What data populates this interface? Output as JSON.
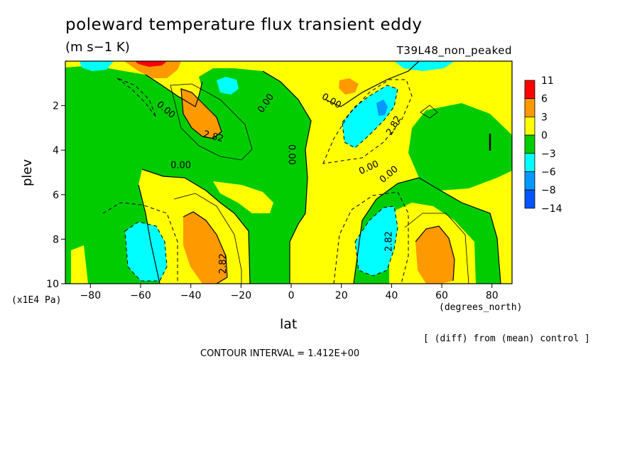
{
  "chart_data": {
    "type": "heatmap",
    "title": "poleward temperature flux transient eddy",
    "units": "(m s−1 K)",
    "run_name": "T39L48_non_peaked",
    "xlabel": "lat",
    "xunit": "(degrees_north)",
    "ylabel": "plev",
    "yunit": "(x1E4 Pa)",
    "footnote": "[ (diff) from (mean) control ]",
    "contour_interval_text": "CONTOUR INTERVAL = 1.412E+00",
    "xlim": [
      -90,
      88
    ],
    "ylim": [
      10,
      0
    ],
    "x_ticks": [
      -80,
      -60,
      -40,
      -20,
      0,
      20,
      40,
      60,
      80
    ],
    "y_ticks": [
      2,
      4,
      6,
      8,
      10
    ],
    "contour_labels": [
      {
        "text": "0.00",
        "x": -50,
        "y": 2.2,
        "angle": 40
      },
      {
        "text": "2.82",
        "x": -31,
        "y": 3.4,
        "angle": 15
      },
      {
        "text": "0.00",
        "x": -10,
        "y": 1.9,
        "angle": -55
      },
      {
        "text": "0.00",
        "x": 16,
        "y": 1.8,
        "angle": 30
      },
      {
        "text": "2.82",
        "x": 41,
        "y": 2.9,
        "angle": -60
      },
      {
        "text": "0.00",
        "x": -44,
        "y": 4.7,
        "angle": 0
      },
      {
        "text": "0.00",
        "x": 0,
        "y": 4.2,
        "angle": 90
      },
      {
        "text": "0.00",
        "x": 31,
        "y": 4.8,
        "angle": -25
      },
      {
        "text": "0.00",
        "x": 39,
        "y": 5.1,
        "angle": -40
      },
      {
        "text": "2.82",
        "x": 39,
        "y": 8.1,
        "angle": -90
      },
      {
        "text": "2.82",
        "x": -27,
        "y": 9.1,
        "angle": -90
      }
    ],
    "colorbar": {
      "labels": [
        "11",
        "6",
        "3",
        "0",
        "−3",
        "−6",
        "−8",
        "−14"
      ],
      "colors": [
        "#ff0000",
        "#ff9900",
        "#ffff00",
        "#00cc00",
        "#00ffff",
        "#0099ff",
        "#0055ff"
      ]
    },
    "field_colors": {
      "background": "#00cc00",
      "positive_1": "#ffff00",
      "positive_2": "#ff9900",
      "positive_3": "#ff0000",
      "negative_1": "#00ffff",
      "negative_2": "#0099ff"
    }
  }
}
